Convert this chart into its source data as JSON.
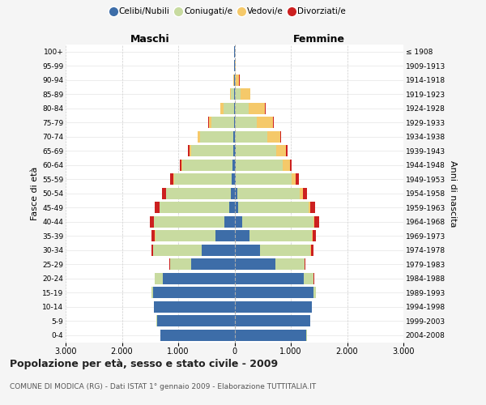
{
  "age_groups": [
    "0-4",
    "5-9",
    "10-14",
    "15-19",
    "20-24",
    "25-29",
    "30-34",
    "35-39",
    "40-44",
    "45-49",
    "50-54",
    "55-59",
    "60-64",
    "65-69",
    "70-74",
    "75-79",
    "80-84",
    "85-89",
    "90-94",
    "95-99",
    "100+"
  ],
  "birth_years": [
    "2004-2008",
    "1999-2003",
    "1994-1998",
    "1989-1993",
    "1984-1988",
    "1979-1983",
    "1974-1978",
    "1969-1973",
    "1964-1968",
    "1959-1963",
    "1954-1958",
    "1949-1953",
    "1944-1948",
    "1939-1943",
    "1934-1938",
    "1929-1933",
    "1924-1928",
    "1919-1923",
    "1914-1918",
    "1909-1913",
    "≤ 1908"
  ],
  "males": {
    "celibi": [
      1320,
      1380,
      1430,
      1440,
      1280,
      770,
      580,
      340,
      180,
      100,
      60,
      45,
      35,
      25,
      20,
      12,
      8,
      5,
      2,
      2,
      1
    ],
    "coniugati": [
      2,
      2,
      5,
      40,
      140,
      380,
      860,
      1070,
      1250,
      1230,
      1150,
      1030,
      890,
      750,
      590,
      400,
      190,
      60,
      12,
      4,
      1
    ],
    "vedovi": [
      0,
      0,
      0,
      0,
      0,
      0,
      2,
      3,
      5,
      8,
      12,
      18,
      22,
      28,
      38,
      45,
      55,
      20,
      5,
      2,
      0
    ],
    "divorziati": [
      0,
      0,
      0,
      0,
      3,
      10,
      30,
      55,
      65,
      75,
      65,
      55,
      22,
      18,
      12,
      5,
      2,
      0,
      0,
      0,
      0
    ]
  },
  "females": {
    "nubili": [
      1280,
      1350,
      1370,
      1400,
      1230,
      720,
      460,
      270,
      130,
      70,
      45,
      28,
      22,
      18,
      12,
      8,
      5,
      12,
      4,
      2,
      0
    ],
    "coniugate": [
      2,
      2,
      5,
      50,
      180,
      520,
      890,
      1110,
      1270,
      1240,
      1120,
      980,
      840,
      720,
      570,
      390,
      240,
      90,
      22,
      8,
      2
    ],
    "vedove": [
      0,
      0,
      0,
      0,
      0,
      2,
      5,
      8,
      22,
      35,
      55,
      75,
      120,
      180,
      230,
      290,
      300,
      180,
      60,
      18,
      5
    ],
    "divorziate": [
      0,
      0,
      0,
      0,
      5,
      18,
      50,
      65,
      80,
      80,
      70,
      55,
      30,
      22,
      15,
      10,
      5,
      3,
      1,
      0,
      0
    ]
  },
  "colors": {
    "celibi": "#3d6da8",
    "coniugati": "#c8dba0",
    "vedovi": "#f5c96a",
    "divorziati": "#cc2020"
  },
  "xlim": 3000,
  "title": "Popolazione per età, sesso e stato civile - 2009",
  "subtitle": "COMUNE DI MODICA (RG) - Dati ISTAT 1° gennaio 2009 - Elaborazione TUTTITALIA.IT",
  "ylabel_left": "Fasce di età",
  "ylabel_right": "Anni di nascita",
  "xlabel_left": "Maschi",
  "xlabel_right": "Femmine",
  "legend_labels": [
    "Celibi/Nubili",
    "Coniugati/e",
    "Vedovi/e",
    "Divorziati/e"
  ],
  "bg_color": "#f5f5f5",
  "plot_bg_color": "#ffffff"
}
